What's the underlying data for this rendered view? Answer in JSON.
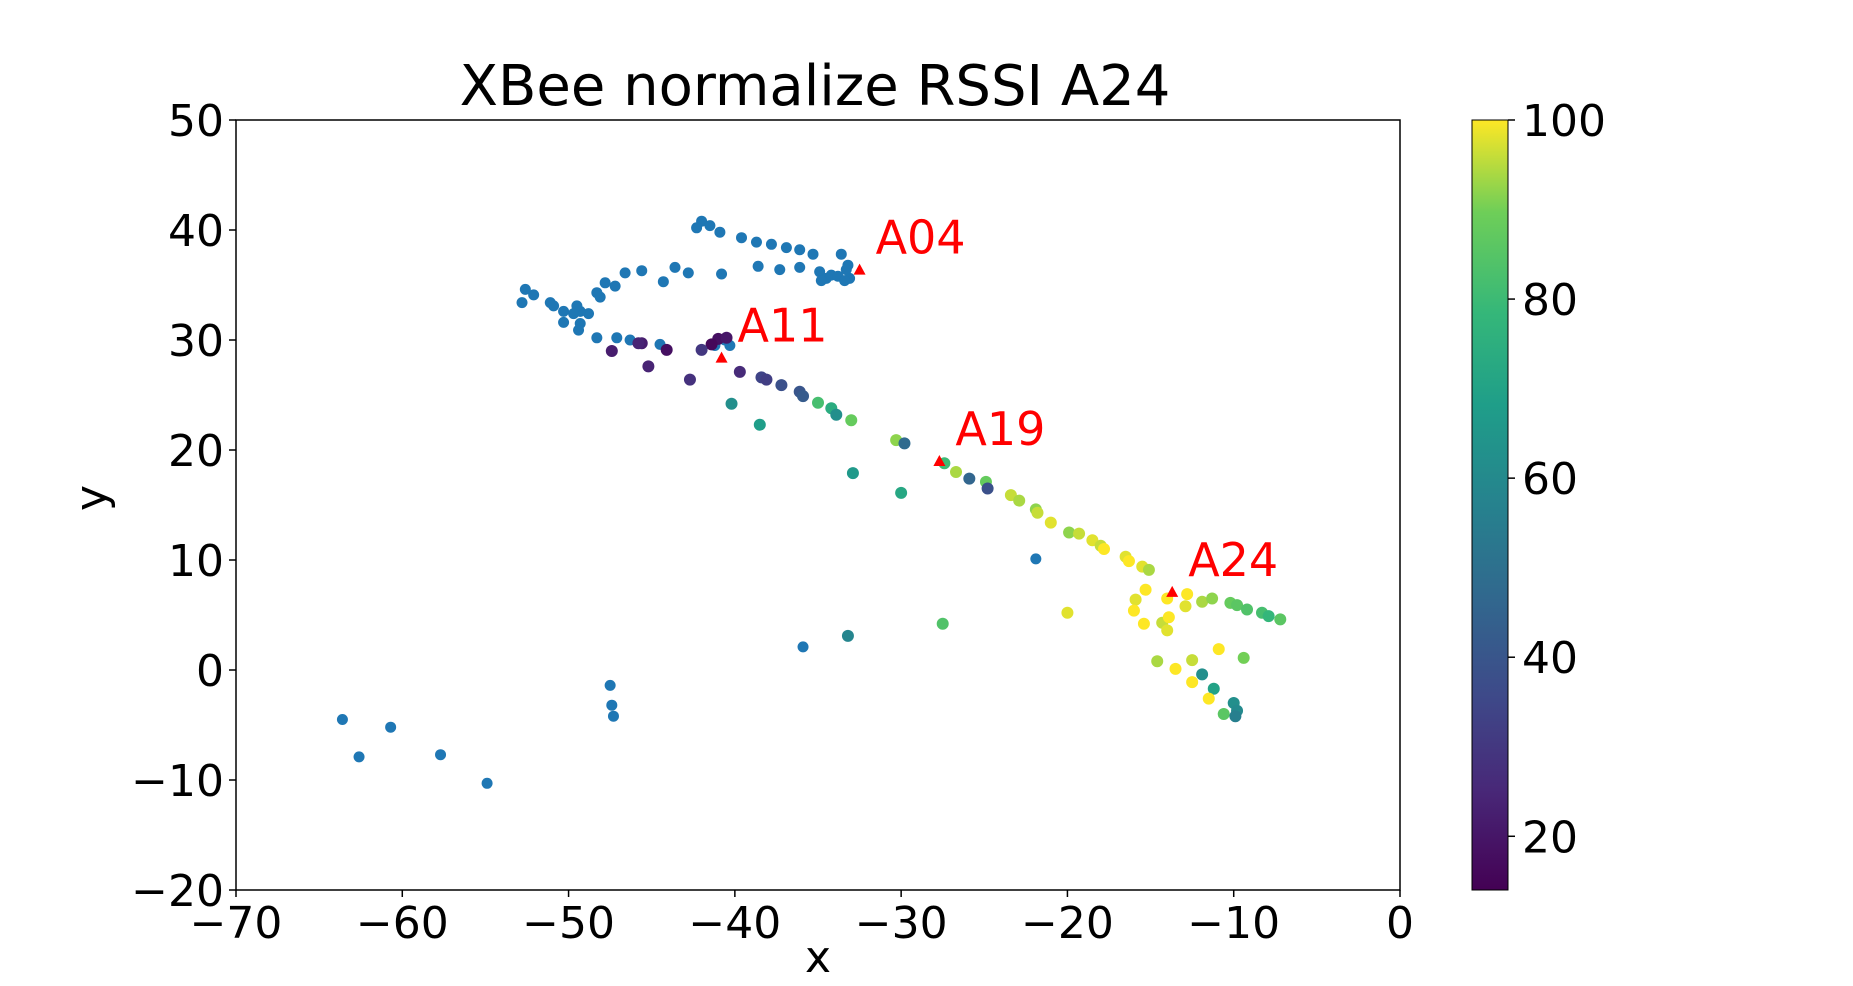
{
  "chart_data": {
    "type": "scatter",
    "title": "XBee normalize RSSI A24",
    "xlabel": "x",
    "ylabel": "y",
    "xlim": [
      -70,
      0
    ],
    "ylim": [
      -20,
      50
    ],
    "xticks": [
      -70,
      -60,
      -50,
      -40,
      -30,
      -20,
      -10,
      0
    ],
    "yticks": [
      -20,
      -10,
      0,
      10,
      20,
      30,
      40,
      50
    ],
    "grid": false,
    "colormap": "viridis",
    "colorbar": {
      "range": [
        14,
        100
      ],
      "ticks": [
        20,
        40,
        60,
        80,
        100
      ]
    },
    "unscored_color": "#1f77b4",
    "points_blue": [
      [
        -42.0,
        40.8
      ],
      [
        -41.5,
        40.4
      ],
      [
        -42.3,
        40.2
      ],
      [
        -40.9,
        39.8
      ],
      [
        -39.6,
        39.3
      ],
      [
        -38.7,
        38.9
      ],
      [
        -37.8,
        38.7
      ],
      [
        -36.9,
        38.4
      ],
      [
        -36.1,
        38.2
      ],
      [
        -35.3,
        37.8
      ],
      [
        -33.6,
        37.8
      ],
      [
        -33.2,
        36.8
      ],
      [
        -34.9,
        36.2
      ],
      [
        -34.5,
        35.6
      ],
      [
        -34.2,
        35.9
      ],
      [
        -33.8,
        35.8
      ],
      [
        -33.1,
        35.6
      ],
      [
        -33.4,
        35.4
      ],
      [
        -34.8,
        35.4
      ],
      [
        -33.3,
        36.4
      ],
      [
        -36.1,
        36.6
      ],
      [
        -37.3,
        36.4
      ],
      [
        -38.6,
        36.7
      ],
      [
        -40.8,
        36.0
      ],
      [
        -42.8,
        36.1
      ],
      [
        -43.6,
        36.6
      ],
      [
        -44.3,
        35.3
      ],
      [
        -45.6,
        36.3
      ],
      [
        -46.6,
        36.1
      ],
      [
        -47.2,
        34.9
      ],
      [
        -48.1,
        33.9
      ],
      [
        -48.3,
        34.3
      ],
      [
        -47.8,
        35.2
      ],
      [
        -48.8,
        32.4
      ],
      [
        -49.3,
        32.6
      ],
      [
        -49.5,
        33.1
      ],
      [
        -49.7,
        32.4
      ],
      [
        -50.3,
        32.6
      ],
      [
        -50.9,
        33.1
      ],
      [
        -51.1,
        33.4
      ],
      [
        -52.1,
        34.1
      ],
      [
        -52.6,
        34.6
      ],
      [
        -52.8,
        33.4
      ],
      [
        -50.3,
        31.6
      ],
      [
        -49.3,
        31.5
      ],
      [
        -49.4,
        30.9
      ],
      [
        -48.3,
        30.2
      ],
      [
        -47.1,
        30.2
      ],
      [
        -46.3,
        30.0
      ],
      [
        -44.5,
        29.6
      ],
      [
        -41.2,
        29.5
      ],
      [
        -40.3,
        29.5
      ],
      [
        -40.6,
        30.0
      ],
      [
        -35.9,
        2.1
      ],
      [
        -63.6,
        -4.5
      ],
      [
        -62.6,
        -7.9
      ],
      [
        -60.7,
        -5.2
      ],
      [
        -57.7,
        -7.7
      ],
      [
        -54.9,
        -10.3
      ],
      [
        -47.5,
        -1.4
      ],
      [
        -47.4,
        -3.2
      ],
      [
        -47.3,
        -4.2
      ],
      [
        -21.9,
        10.1
      ]
    ],
    "points_rssi": [
      [
        -41.0,
        30.1,
        18
      ],
      [
        -41.4,
        29.6,
        16
      ],
      [
        -40.5,
        30.2,
        20
      ],
      [
        -42.0,
        29.1,
        30
      ],
      [
        -44.1,
        29.1,
        18
      ],
      [
        -45.6,
        29.7,
        22
      ],
      [
        -45.8,
        29.7,
        24
      ],
      [
        -47.4,
        29.0,
        22
      ],
      [
        -45.2,
        27.6,
        24
      ],
      [
        -42.7,
        26.4,
        28
      ],
      [
        -39.7,
        27.1,
        26
      ],
      [
        -38.4,
        26.6,
        34
      ],
      [
        -38.1,
        26.4,
        32
      ],
      [
        -37.2,
        25.9,
        38
      ],
      [
        -36.1,
        25.3,
        40
      ],
      [
        -35.9,
        24.9,
        42
      ],
      [
        -35.0,
        24.3,
        82
      ],
      [
        -34.2,
        23.8,
        74
      ],
      [
        -33.9,
        23.2,
        62
      ],
      [
        -33.0,
        22.7,
        88
      ],
      [
        -30.3,
        20.9,
        92
      ],
      [
        -29.8,
        20.6,
        48
      ],
      [
        -27.4,
        18.8,
        80
      ],
      [
        -26.7,
        18.0,
        94
      ],
      [
        -25.9,
        17.4,
        46
      ],
      [
        -24.9,
        17.1,
        88
      ],
      [
        -24.8,
        16.5,
        38
      ],
      [
        -23.4,
        15.9,
        96
      ],
      [
        -22.9,
        15.4,
        94
      ],
      [
        -21.9,
        14.6,
        92
      ],
      [
        -21.8,
        14.3,
        96
      ],
      [
        -21.0,
        13.4,
        98
      ],
      [
        -19.9,
        12.5,
        92
      ],
      [
        -19.3,
        12.4,
        96
      ],
      [
        -18.5,
        11.8,
        98
      ],
      [
        -18.0,
        11.3,
        96
      ],
      [
        -17.8,
        11.0,
        100
      ],
      [
        -16.5,
        10.3,
        98
      ],
      [
        -16.3,
        9.9,
        100
      ],
      [
        -15.5,
        9.4,
        98
      ],
      [
        -15.1,
        9.1,
        94
      ],
      [
        -15.3,
        7.3,
        100
      ],
      [
        -14.0,
        6.5,
        100
      ],
      [
        -12.8,
        6.9,
        100
      ],
      [
        -11.9,
        6.2,
        94
      ],
      [
        -11.3,
        6.5,
        92
      ],
      [
        -10.2,
        6.1,
        88
      ],
      [
        -9.8,
        5.9,
        86
      ],
      [
        -9.2,
        5.5,
        84
      ],
      [
        -8.3,
        5.2,
        82
      ],
      [
        -7.9,
        4.9,
        78
      ],
      [
        -7.2,
        4.6,
        86
      ],
      [
        -15.9,
        6.4,
        98
      ],
      [
        -16.0,
        5.4,
        100
      ],
      [
        -15.4,
        4.2,
        100
      ],
      [
        -14.3,
        4.3,
        96
      ],
      [
        -14.0,
        3.6,
        98
      ],
      [
        -13.9,
        4.8,
        100
      ],
      [
        -12.9,
        5.8,
        98
      ],
      [
        -14.6,
        0.8,
        94
      ],
      [
        -13.5,
        0.1,
        100
      ],
      [
        -12.5,
        0.9,
        96
      ],
      [
        -12.5,
        -1.1,
        100
      ],
      [
        -11.9,
        -0.4,
        62
      ],
      [
        -11.2,
        -1.7,
        70
      ],
      [
        -11.5,
        -2.6,
        100
      ],
      [
        -10.9,
        1.9,
        100
      ],
      [
        -10.6,
        -4.0,
        86
      ],
      [
        -10.0,
        -3.0,
        62
      ],
      [
        -9.8,
        -3.7,
        60
      ],
      [
        -9.9,
        -4.2,
        56
      ],
      [
        -9.4,
        1.1,
        90
      ],
      [
        -20.0,
        5.2,
        98
      ],
      [
        -27.5,
        4.2,
        84
      ],
      [
        -30.0,
        16.1,
        72
      ],
      [
        -32.9,
        17.9,
        66
      ],
      [
        -40.2,
        24.2,
        62
      ],
      [
        -38.5,
        22.3,
        68
      ],
      [
        -33.2,
        3.1,
        58
      ]
    ],
    "annotations": [
      {
        "label": "A04",
        "x": -32.5,
        "y": 36.4
      },
      {
        "label": "A11",
        "x": -40.8,
        "y": 28.4
      },
      {
        "label": "A19",
        "x": -27.7,
        "y": 19.0
      },
      {
        "label": "A24",
        "x": -13.7,
        "y": 7.1
      }
    ]
  }
}
